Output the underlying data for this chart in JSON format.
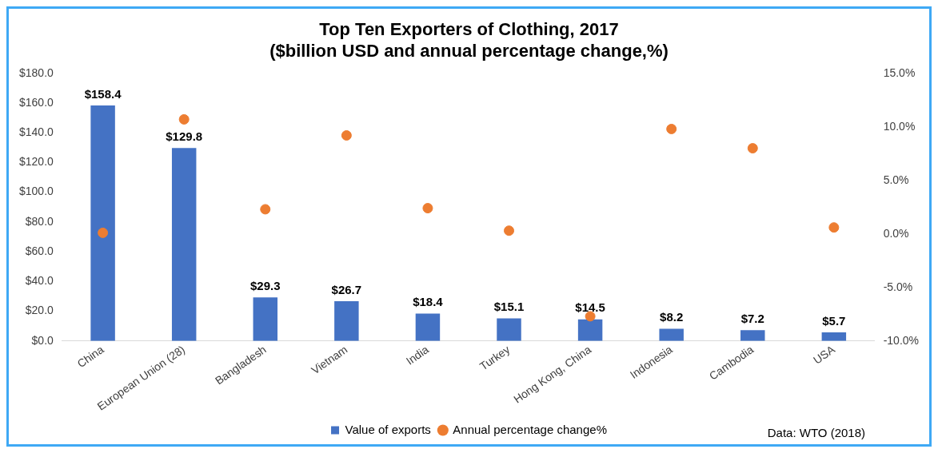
{
  "chart_data": {
    "type": "bar",
    "title": "Top Ten Exporters of Clothing, 2017\n($billion USD and annual percentage change,%)",
    "categories": [
      "China",
      "European Union (28)",
      "Bangladesh",
      "Vietnam",
      "India",
      "Turkey",
      "Hong Kong, China",
      "Indonesia",
      "Cambodia",
      "USA"
    ],
    "series": [
      {
        "name": "Value of exports",
        "color": "#4472c4",
        "values": [
          158.4,
          129.8,
          29.3,
          26.7,
          18.4,
          15.1,
          14.5,
          8.2,
          7.2,
          5.7
        ],
        "value_labels": [
          "$158.4",
          "$129.8",
          "$29.3",
          "$26.7",
          "$18.4",
          "$15.1",
          "$14.5",
          "$8.2",
          "$7.2",
          "$5.7"
        ]
      },
      {
        "name": "Annual percentage change%",
        "type": "scatter",
        "axis": "y2",
        "color": "#ed7d31",
        "marker": "circle",
        "x": [
          "China",
          "European Union (28)",
          "Bangladesh",
          "Vietnam",
          "India",
          "Turkey",
          "Hong Kong, China",
          "Indonesia",
          "Cambodia",
          "USA"
        ],
        "values": [
          0.1,
          10.7,
          2.3,
          9.2,
          2.4,
          0.3,
          -7.7,
          9.8,
          8.0,
          0.6
        ]
      }
    ],
    "ylim": [
      0,
      180
    ],
    "yticks": [
      {
        "value": 0,
        "label": "$0.0"
      },
      {
        "value": 20,
        "label": "$20.0"
      },
      {
        "value": 40,
        "label": "$40.0"
      },
      {
        "value": 60,
        "label": "$60.0"
      },
      {
        "value": 80,
        "label": "$80.0"
      },
      {
        "value": 100,
        "label": "$100.0"
      },
      {
        "value": 120,
        "label": "$120.0"
      },
      {
        "value": 140,
        "label": "$140.0"
      },
      {
        "value": 160,
        "label": "$160.0"
      },
      {
        "value": 180,
        "label": "$180.0"
      }
    ],
    "y2lim": [
      -10,
      15
    ],
    "y2ticks": [
      {
        "value": -10,
        "label": "-10.0%"
      },
      {
        "value": -5,
        "label": "-5.0%"
      },
      {
        "value": 0,
        "label": "0.0%"
      },
      {
        "value": 5,
        "label": "5.0%"
      },
      {
        "value": 10,
        "label": "10.0%"
      },
      {
        "value": 15,
        "label": "15.0%"
      }
    ],
    "legend": "bottom",
    "annotations": [
      "Data: WTO (2018)"
    ]
  }
}
